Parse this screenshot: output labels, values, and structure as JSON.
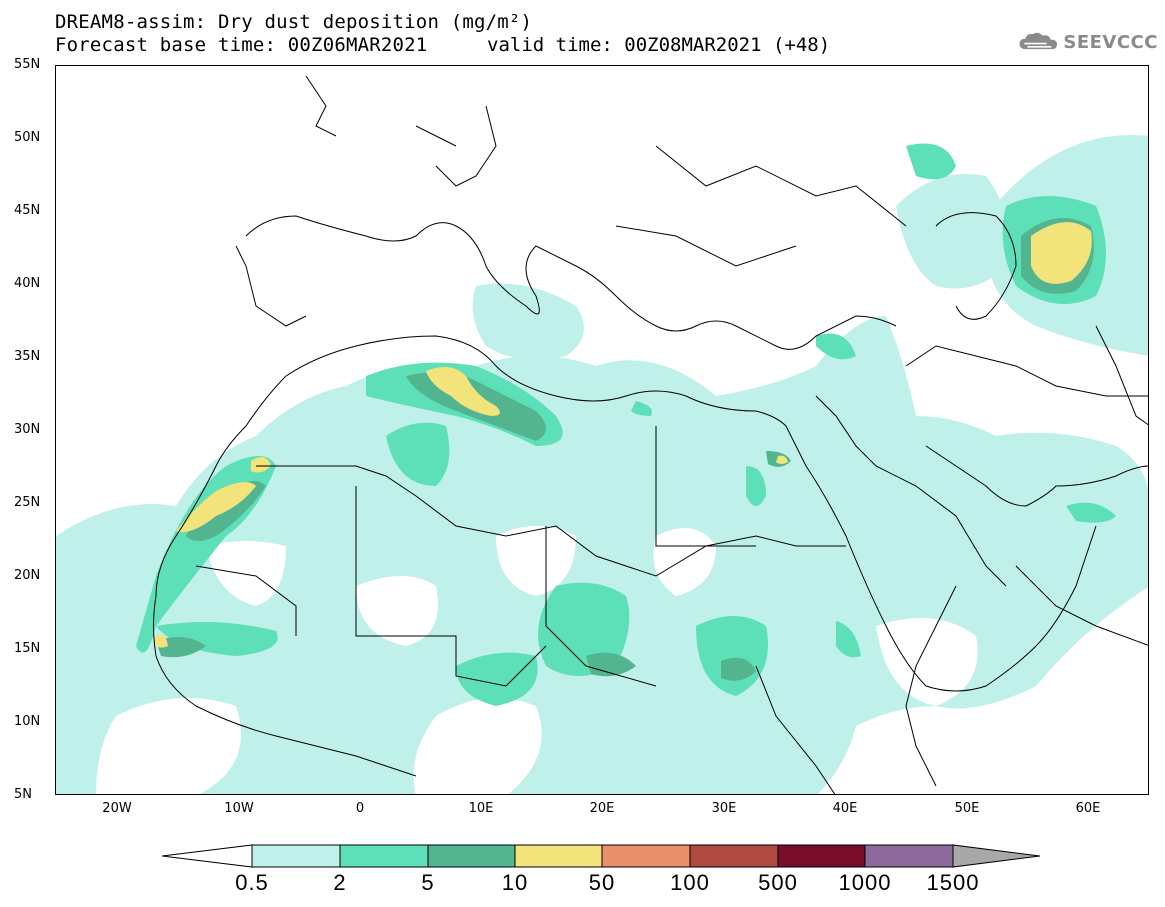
{
  "title": {
    "line1": "DREAM8-assim: Dry dust deposition (mg/m²)",
    "line2": "Forecast base time: 00Z06MAR2021",
    "line2_valid": "valid time: 00Z08MAR2021 (+48)"
  },
  "logo": {
    "text": "SEEVCCC",
    "icon": "cloud-icon",
    "color": "#8a8a8a"
  },
  "map": {
    "lon_range": [
      -25,
      65
    ],
    "lat_range": [
      5,
      55
    ],
    "lat_ticks": [
      "55N",
      "50N",
      "45N",
      "40N",
      "35N",
      "30N",
      "25N",
      "20N",
      "15N",
      "10N",
      "5N"
    ],
    "lon_ticks": [
      "20W",
      "10W",
      "0",
      "10E",
      "20E",
      "30E",
      "40E",
      "50E",
      "60E"
    ]
  },
  "legend": {
    "labels": [
      "0.5",
      "2",
      "5",
      "10",
      "50",
      "100",
      "500",
      "1000",
      "1500"
    ],
    "colors": [
      "#ffffff",
      "#bff0ea",
      "#5de0b8",
      "#52b58f",
      "#f2e37a",
      "#e8906a",
      "#b04a40",
      "#7a0e2a",
      "#8c6b9c",
      "#a8a8a8"
    ]
  }
}
